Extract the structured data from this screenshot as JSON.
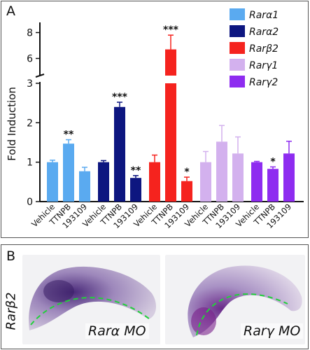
{
  "panel_a": {
    "letter": "A",
    "chart_data": {
      "type": "bar",
      "ylabel": "Fold Induction",
      "axis_break": true,
      "lower_ylim": [
        0,
        3
      ],
      "lower_yticks": [
        0,
        1,
        2,
        3
      ],
      "upper_ylim": [
        5,
        9
      ],
      "upper_yticks": [
        6,
        8
      ],
      "categories": [
        "Vehicle",
        "TTNPB",
        "193109"
      ],
      "series": [
        {
          "name": "Rarα1",
          "color": "#5aaaf0",
          "values": [
            1.0,
            1.47,
            0.77
          ],
          "errors": [
            0.05,
            0.1,
            0.1
          ],
          "significance": [
            "",
            "**",
            ""
          ]
        },
        {
          "name": "Rarα2",
          "color": "#0d1680",
          "values": [
            1.0,
            2.4,
            0.6
          ],
          "errors": [
            0.04,
            0.12,
            0.06
          ],
          "significance": [
            "",
            "***",
            "**"
          ]
        },
        {
          "name": "Rarβ2",
          "color": "#f5231e",
          "values": [
            1.0,
            6.7,
            0.52
          ],
          "errors": [
            0.18,
            1.1,
            0.1
          ],
          "significance": [
            "",
            "***",
            "*"
          ]
        },
        {
          "name": "Rarγ1",
          "color": "#d3b1ee",
          "values": [
            1.0,
            1.52,
            1.22
          ],
          "errors": [
            0.27,
            0.41,
            0.42
          ],
          "significance": [
            "",
            "",
            ""
          ]
        },
        {
          "name": "Rarγ2",
          "color": "#8e2cf0",
          "values": [
            1.0,
            0.83,
            1.22
          ],
          "errors": [
            0.02,
            0.05,
            0.31
          ],
          "significance": [
            "",
            "*",
            ""
          ]
        }
      ],
      "legend_position": "top-right"
    }
  },
  "panel_b": {
    "letter": "B",
    "side_label": "Rarβ2",
    "images": [
      {
        "caption": "Rarα MO"
      },
      {
        "caption": "Rarγ MO"
      }
    ]
  }
}
